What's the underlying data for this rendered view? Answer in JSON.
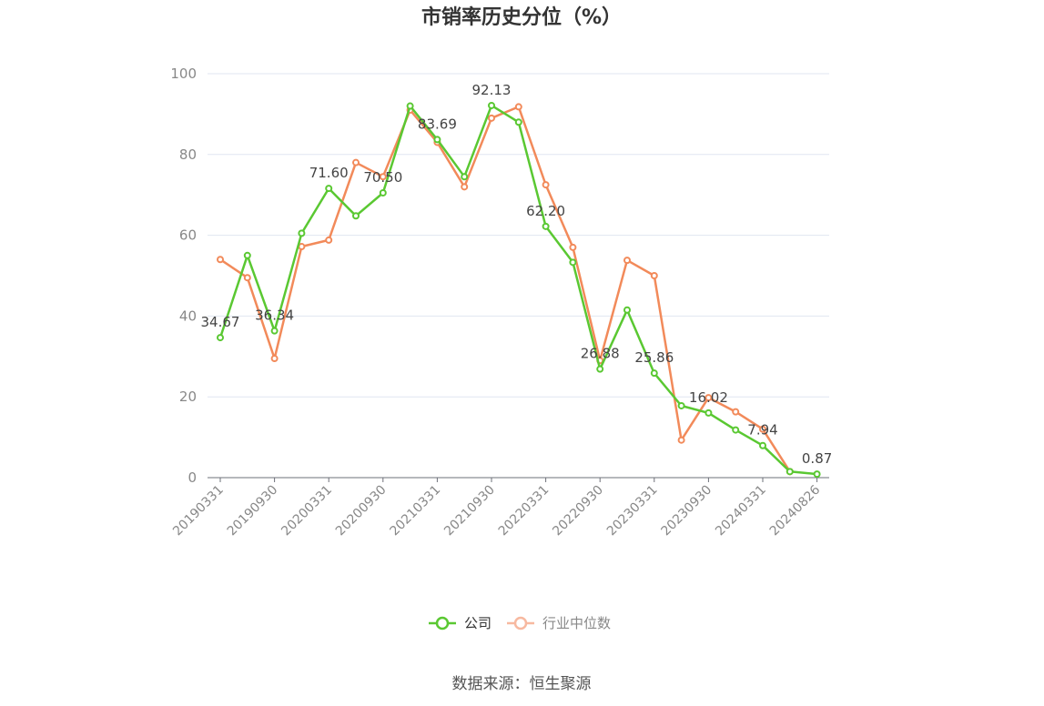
{
  "chart_data": {
    "type": "line",
    "title": "市销率历史分位（%）",
    "source_text": "数据来源：恒生聚源",
    "ylim": [
      0,
      100
    ],
    "yticks": [
      0,
      20,
      40,
      60,
      80,
      100
    ],
    "x_tick_labels": [
      "20190331",
      "20190930",
      "20200331",
      "20200930",
      "20210331",
      "20210930",
      "20220331",
      "20220930",
      "20230331",
      "20230930",
      "20240331",
      "20240826"
    ],
    "grid": true,
    "legend_position": "bottom-center",
    "series": [
      {
        "name": "公司",
        "color": "#5ac832",
        "values": [
          34.67,
          55.0,
          36.34,
          60.5,
          71.6,
          64.8,
          70.5,
          92.0,
          83.69,
          74.5,
          92.13,
          88.0,
          62.2,
          53.3,
          26.88,
          41.5,
          25.86,
          17.8,
          16.02,
          11.8,
          7.94,
          1.5,
          0.87
        ],
        "labels": [
          "34.67",
          "",
          "36.34",
          "",
          "71.60",
          "",
          "70.50",
          "",
          "83.69",
          "",
          "92.13",
          "",
          "62.20",
          "",
          "26.88",
          "",
          "25.86",
          "",
          "16.02",
          "",
          "7.94",
          "",
          "0.87"
        ]
      },
      {
        "name": "行业中位数",
        "color": "#f28a5a",
        "values": [
          54.0,
          49.5,
          29.5,
          57.2,
          58.8,
          78.0,
          74.5,
          91.0,
          83.0,
          72.0,
          89.0,
          91.8,
          72.5,
          57.0,
          29.0,
          53.8,
          50.0,
          9.3,
          19.8,
          16.3,
          12.0,
          1.5,
          null
        ]
      }
    ]
  }
}
